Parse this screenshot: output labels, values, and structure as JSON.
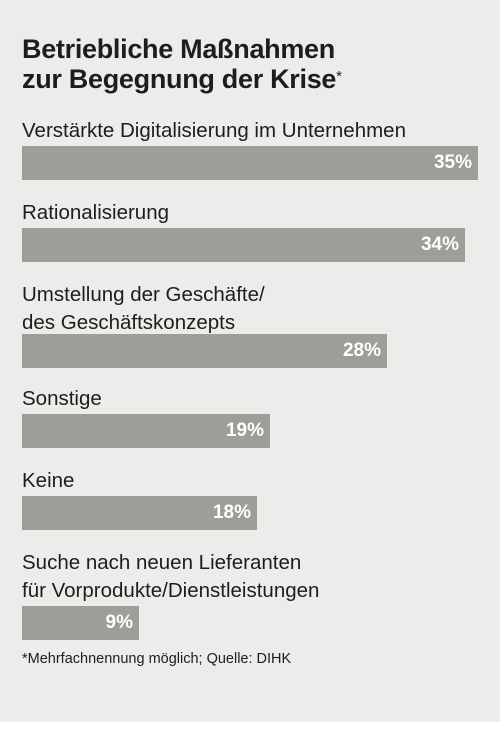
{
  "chart_data": {
    "type": "bar",
    "orientation": "horizontal",
    "title_line1": "Betriebliche Maßnahmen",
    "title_line2": "zur Begegnung der Krise",
    "title_mark": "*",
    "categories": [
      [
        "Verstärkte Digitalisierung im Unternehmen"
      ],
      [
        "Rationalisierung"
      ],
      [
        "Umstellung der Geschäfte/",
        "des Geschäftskonzepts"
      ],
      [
        "Sonstige"
      ],
      [
        "Keine"
      ],
      [
        "Suche nach neuen Lieferanten",
        "für Vorprodukte/Dienstleistungen"
      ]
    ],
    "values": [
      35,
      34,
      28,
      19,
      18,
      9
    ],
    "value_labels": [
      "35%",
      "34%",
      "28%",
      "19%",
      "18%",
      "9%"
    ],
    "unit": "%",
    "xlim": [
      0,
      35
    ],
    "bar_color": "#9c9f98",
    "footnote": "*Mehrfachnennung möglich; Quelle: DIHK"
  }
}
